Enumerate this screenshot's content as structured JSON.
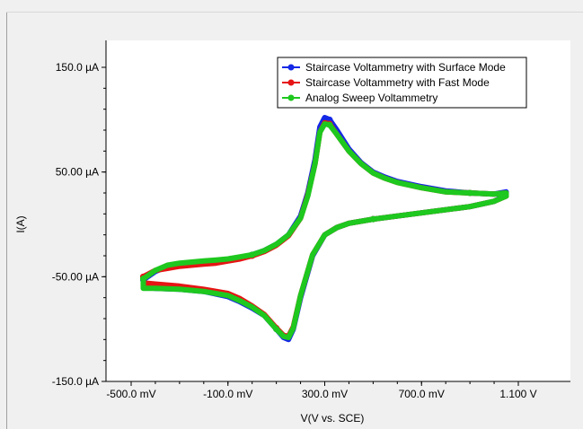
{
  "chart_data": {
    "type": "line",
    "xlabel": "V(V vs. SCE)",
    "ylabel": "I(A)",
    "xlim": [
      -0.5,
      1.1
    ],
    "ylim": [
      -150,
      150
    ],
    "x_ticks": [
      {
        "value": -0.5,
        "label": "-500.0 mV"
      },
      {
        "value": -0.1,
        "label": "-100.0 mV"
      },
      {
        "value": 0.3,
        "label": "300.0 mV"
      },
      {
        "value": 0.7,
        "label": "700.0 mV"
      },
      {
        "value": 1.1,
        "label": "1.100 V"
      }
    ],
    "y_ticks": [
      {
        "value": 150,
        "label": "150.0 µA"
      },
      {
        "value": 50,
        "label": "50.00 µA"
      },
      {
        "value": -50,
        "label": "-50.00 µA"
      },
      {
        "value": -150,
        "label": "-150.0 µA"
      }
    ],
    "grid": false,
    "legend_position": "top-right",
    "series": [
      {
        "name": "Staircase Voltammetry with Surface Mode",
        "color": "#1428e6",
        "x": [
          -0.45,
          -0.4,
          -0.35,
          -0.3,
          -0.25,
          -0.2,
          -0.15,
          -0.1,
          -0.05,
          0.0,
          0.05,
          0.1,
          0.15,
          0.2,
          0.23,
          0.26,
          0.28,
          0.3,
          0.32,
          0.35,
          0.4,
          0.45,
          0.5,
          0.55,
          0.6,
          0.7,
          0.8,
          0.9,
          1.0,
          1.05,
          1.05,
          1.0,
          0.9,
          0.8,
          0.7,
          0.6,
          0.5,
          0.4,
          0.35,
          0.3,
          0.25,
          0.2,
          0.17,
          0.15,
          0.13,
          0.1,
          0.05,
          0.0,
          -0.05,
          -0.1,
          -0.2,
          -0.3,
          -0.4,
          -0.45,
          -0.45
        ],
        "y": [
          -53,
          -45,
          -40,
          -38,
          -37,
          -36,
          -35,
          -34,
          -32,
          -29,
          -25,
          -19,
          -10,
          8,
          30,
          62,
          93,
          102,
          100,
          90,
          72,
          59,
          50,
          45,
          41,
          36,
          32,
          30,
          29,
          31,
          28,
          22,
          17,
          14,
          11,
          8,
          5,
          1,
          -3,
          -10,
          -30,
          -70,
          -100,
          -110,
          -108,
          -100,
          -87,
          -80,
          -74,
          -69,
          -64,
          -62,
          -61,
          -60,
          -53
        ]
      },
      {
        "name": "Staircase Voltammetry with Fast Mode",
        "color": "#e61414",
        "x": [
          -0.45,
          -0.4,
          -0.35,
          -0.3,
          -0.25,
          -0.2,
          -0.15,
          -0.1,
          -0.05,
          0.0,
          0.05,
          0.1,
          0.15,
          0.2,
          0.23,
          0.26,
          0.28,
          0.3,
          0.32,
          0.35,
          0.4,
          0.45,
          0.5,
          0.55,
          0.6,
          0.7,
          0.8,
          0.9,
          1.0,
          1.05,
          1.05,
          1.0,
          0.9,
          0.8,
          0.7,
          0.6,
          0.5,
          0.4,
          0.35,
          0.3,
          0.25,
          0.2,
          0.17,
          0.15,
          0.13,
          0.1,
          0.05,
          0.0,
          -0.05,
          -0.1,
          -0.2,
          -0.3,
          -0.4,
          -0.45,
          -0.45
        ],
        "y": [
          -50,
          -44,
          -42,
          -40,
          -39,
          -38,
          -37,
          -35,
          -33,
          -30,
          -26,
          -20,
          -11,
          6,
          28,
          58,
          88,
          97,
          96,
          86,
          70,
          58,
          49,
          44,
          40,
          35,
          31,
          30,
          29,
          30,
          27,
          22,
          17,
          14,
          11,
          8,
          5,
          1,
          -3,
          -10,
          -29,
          -68,
          -98,
          -107,
          -106,
          -99,
          -86,
          -78,
          -71,
          -66,
          -62,
          -59,
          -57,
          -56,
          -50
        ]
      },
      {
        "name": "Analog Sweep Voltammetry",
        "color": "#1ec81e",
        "x": [
          -0.45,
          -0.4,
          -0.35,
          -0.3,
          -0.25,
          -0.2,
          -0.15,
          -0.1,
          -0.05,
          0.0,
          0.05,
          0.1,
          0.15,
          0.2,
          0.23,
          0.26,
          0.28,
          0.3,
          0.32,
          0.35,
          0.4,
          0.45,
          0.5,
          0.55,
          0.6,
          0.7,
          0.8,
          0.9,
          1.0,
          1.05,
          1.05,
          1.0,
          0.9,
          0.8,
          0.7,
          0.6,
          0.5,
          0.4,
          0.35,
          0.3,
          0.25,
          0.2,
          0.17,
          0.15,
          0.13,
          0.1,
          0.05,
          0.0,
          -0.05,
          -0.1,
          -0.2,
          -0.3,
          -0.4,
          -0.45,
          -0.45
        ],
        "y": [
          -52,
          -44,
          -39,
          -37,
          -36,
          -35,
          -34,
          -33,
          -31,
          -29,
          -25,
          -19,
          -10,
          6,
          27,
          58,
          88,
          96,
          95,
          86,
          70,
          58,
          49,
          44,
          40,
          35,
          31,
          30,
          29,
          30,
          27,
          22,
          17,
          14,
          11,
          8,
          5,
          1,
          -3,
          -10,
          -29,
          -68,
          -99,
          -108,
          -107,
          -100,
          -87,
          -79,
          -73,
          -68,
          -64,
          -62,
          -61,
          -61,
          -52
        ]
      }
    ]
  }
}
